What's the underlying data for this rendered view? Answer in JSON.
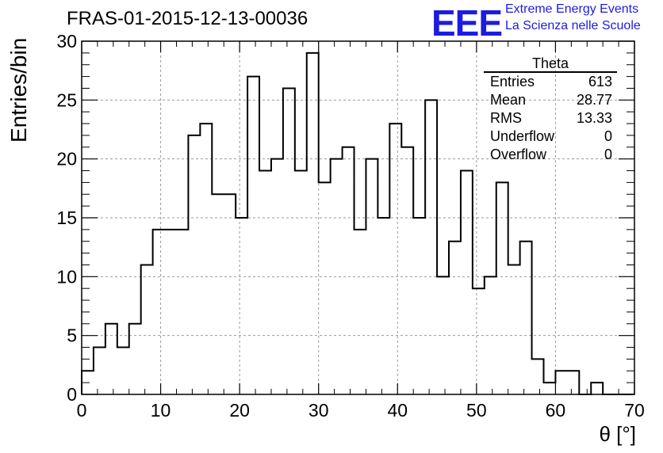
{
  "title": "FRAS-01-2015-12-13-00036",
  "logo": {
    "mark": "EEE",
    "line1": "Extreme Energy Events",
    "line2": "La Scienza nelle Scuole",
    "color": "#1c1ce0"
  },
  "stats_box": {
    "title": "Theta",
    "rows": [
      {
        "label": "Entries",
        "value": "613"
      },
      {
        "label": "Mean",
        "value": "28.77"
      },
      {
        "label": "RMS",
        "value": "13.33"
      },
      {
        "label": "Underflow",
        "value": "0"
      },
      {
        "label": "Overflow",
        "value": "0"
      }
    ]
  },
  "chart_data": {
    "type": "bar",
    "style": "step-histogram",
    "title": "FRAS-01-2015-12-13-00036",
    "xlabel": "θ [°]",
    "ylabel": "Entries/bin",
    "xlim": [
      0,
      70
    ],
    "ylim": [
      0,
      30
    ],
    "bin_width": 1.5,
    "x_ticks": [
      "0",
      "10",
      "20",
      "30",
      "40",
      "50",
      "60",
      "70"
    ],
    "y_ticks": [
      "0",
      "5",
      "10",
      "15",
      "20",
      "25",
      "30"
    ],
    "grid": true,
    "legend": "none",
    "values": [
      2,
      4,
      6,
      4,
      6,
      11,
      14,
      14,
      14,
      22,
      23,
      17,
      17,
      15,
      27,
      19,
      20,
      26,
      19,
      29,
      18,
      20,
      21,
      14,
      20,
      15,
      23,
      21,
      15,
      25,
      10,
      13,
      19,
      9,
      10,
      18,
      11,
      13,
      3,
      1,
      2,
      2,
      0,
      1,
      0,
      0,
      0
    ]
  }
}
